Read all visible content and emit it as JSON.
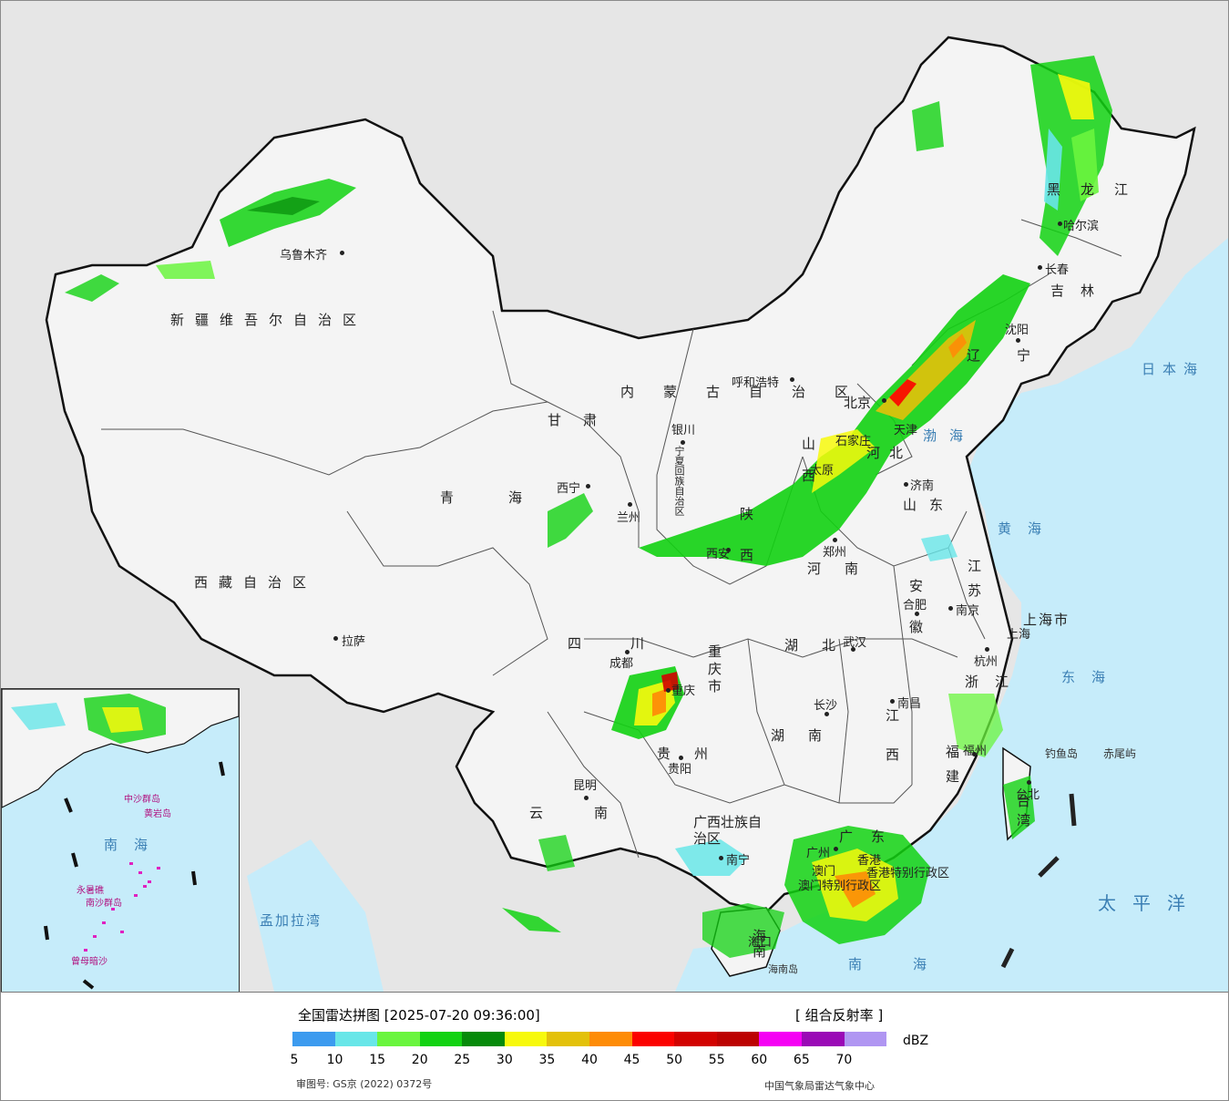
{
  "map": {
    "provinces": [
      {
        "id": "xinjiang",
        "text": "新疆维吾尔自治区"
      },
      {
        "id": "xizang",
        "text": "西藏自治区"
      },
      {
        "id": "qinghai",
        "text": "青海"
      },
      {
        "id": "gansu",
        "text": "甘肃"
      },
      {
        "id": "neimenggu",
        "text": "内蒙古自治区"
      },
      {
        "id": "heilongjiang",
        "text": "黑龙江"
      },
      {
        "id": "jilin",
        "text": "吉林"
      },
      {
        "id": "liaoning",
        "text": "辽宁"
      },
      {
        "id": "hebei",
        "text": "河北"
      },
      {
        "id": "shanxi",
        "text": "山西"
      },
      {
        "id": "shaanxi",
        "text": "陕西"
      },
      {
        "id": "henan",
        "text": "河南"
      },
      {
        "id": "shandong",
        "text": "山东"
      },
      {
        "id": "jiangsu",
        "text": "江苏"
      },
      {
        "id": "anhui",
        "text": "安徽"
      },
      {
        "id": "hubei",
        "text": "湖北"
      },
      {
        "id": "sichuan",
        "text": "四川"
      },
      {
        "id": "chongqing",
        "text": "重庆市"
      },
      {
        "id": "guizhou",
        "text": "贵州"
      },
      {
        "id": "yunnan",
        "text": "云南"
      },
      {
        "id": "hunan",
        "text": "湖南"
      },
      {
        "id": "jiangxi",
        "text": "江西"
      },
      {
        "id": "zhejiang",
        "text": "浙江"
      },
      {
        "id": "fujian",
        "text": "福建"
      },
      {
        "id": "guangxi",
        "text": "广西壮族自治区"
      },
      {
        "id": "guangdong",
        "text": "广东"
      },
      {
        "id": "hainan",
        "text": "海南"
      },
      {
        "id": "taiwan",
        "text": "台湾"
      },
      {
        "id": "shanghai",
        "text": "上海市"
      },
      {
        "id": "ningxia",
        "text": "宁夏回族自治区"
      },
      {
        "id": "hk",
        "text": "香港特别行政区"
      },
      {
        "id": "macau",
        "text": "澳门特别行政区"
      }
    ],
    "cities": [
      "乌鲁木齐",
      "拉萨",
      "西宁",
      "兰州",
      "银川",
      "呼和浩特",
      "北京",
      "天津",
      "石家庄",
      "太原",
      "西安",
      "郑州",
      "济南",
      "南京",
      "上海",
      "合肥",
      "杭州",
      "武汉",
      "成都",
      "重庆",
      "贵阳",
      "昆明",
      "长沙",
      "南昌",
      "福州",
      "台北",
      "广州",
      "香港",
      "澳门",
      "南宁",
      "海口",
      "哈尔滨",
      "长春",
      "沈阳"
    ],
    "seas": [
      "日本海",
      "渤海",
      "黄海",
      "东海",
      "太平洋",
      "南海",
      "孟加拉湾"
    ],
    "islands": [
      "钓鱼岛",
      "赤尾屿",
      "海南岛"
    ],
    "inset_labels": [
      "中沙群岛",
      "黄岩岛",
      "南海",
      "永暑礁",
      "南沙群岛",
      "曾母暗沙"
    ]
  },
  "legend": {
    "title": "全国雷达拼图 [2025-07-20 09:36:00]",
    "product": "[ 组合反射率 ]",
    "unit": "dBZ",
    "colors": [
      "#3c9bef",
      "#68e6e8",
      "#6af53e",
      "#12d212",
      "#068a0a",
      "#f7f90c",
      "#e3c10a",
      "#fe8c07",
      "#fb0200",
      "#d20200",
      "#bc0201",
      "#f501f4",
      "#9a0ab6",
      "#b096f2"
    ],
    "ticks": [
      "5",
      "10",
      "15",
      "20",
      "25",
      "30",
      "35",
      "40",
      "45",
      "50",
      "55",
      "60",
      "65",
      "70"
    ],
    "approval": "审图号: GS京 (2022) 0372号",
    "source": "中国气象局雷达气象中心"
  }
}
